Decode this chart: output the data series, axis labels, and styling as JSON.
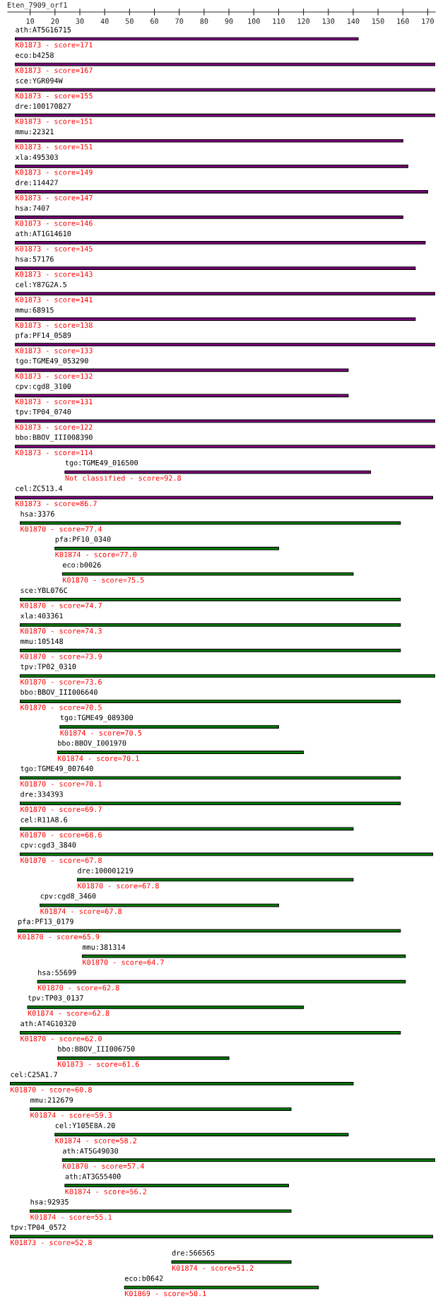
{
  "chart_data": {
    "type": "bar",
    "orientation": "horizontal",
    "title": "Eten_7909_orf1",
    "categories": [
      "ath:AT5G16715",
      "eco:b4258",
      "sce:YGR094W",
      "dre:100170827",
      "mmu:22321",
      "xla:495303",
      "dre:114427",
      "hsa:7407",
      "ath:AT1G14610",
      "hsa:57176",
      "cel:Y87G2A.5",
      "mmu:68915",
      "pfa:PF14_0589",
      "tgo:TGME49_053290",
      "cpv:cgd8_3100",
      "tpv:TP04_0740",
      "bbo:BBOV_III008390",
      "tgo:TGME49_016500",
      "cel:ZC513.4",
      "hsa:3376",
      "pfa:PF10_0340",
      "eco:b0026",
      "sce:YBL076C",
      "xla:403361",
      "mmu:105148",
      "tpv:TP02_0310",
      "bbo:BBOV_III006640",
      "tgo:TGME49_089300",
      "bbo:BBOV_I001970",
      "tgo:TGME49_007640",
      "dre:334393",
      "cel:R11A8.6",
      "cpv:cgd3_3840",
      "dre:100001219",
      "cpv:cgd8_3460",
      "pfa:PF13_0179",
      "mmu:381314",
      "hsa:55699",
      "tpv:TP03_0137",
      "ath:AT4G10320",
      "bbo:BBOV_III006750",
      "cel:C25A1.7",
      "mmu:212679",
      "cel:Y105E8A.20",
      "ath:AT5G49030",
      "ath:AT3G55400",
      "hsa:92935",
      "tpv:TP04_0572",
      "dre:566565",
      "eco:b0642"
    ],
    "base": [
      4,
      4,
      4,
      4,
      4,
      4,
      4,
      4,
      4,
      4,
      4,
      4,
      4,
      4,
      4,
      4,
      4,
      24,
      4,
      6,
      20,
      23,
      6,
      6,
      6,
      6,
      6,
      22,
      21,
      6,
      6,
      6,
      6,
      29,
      14,
      5,
      31,
      13,
      9,
      6,
      21,
      2,
      10,
      20,
      23,
      24,
      10,
      2,
      67,
      48
    ],
    "values": [
      138,
      169,
      169,
      169,
      156,
      158,
      166,
      156,
      165,
      161,
      169,
      161,
      169,
      134,
      134,
      169,
      169,
      123,
      168,
      153,
      90,
      117,
      153,
      153,
      153,
      167,
      153,
      88,
      99,
      153,
      153,
      134,
      166,
      111,
      96,
      154,
      130,
      148,
      111,
      153,
      69,
      138,
      105,
      118,
      150,
      90,
      105,
      170,
      48,
      78
    ],
    "colors": [
      "#800080",
      "#800080",
      "#800080",
      "#800080",
      "#800080",
      "#800080",
      "#800080",
      "#800080",
      "#800080",
      "#800080",
      "#800080",
      "#800080",
      "#800080",
      "#800080",
      "#800080",
      "#800080",
      "#800080",
      "#800080",
      "#800080",
      "#008000",
      "#008000",
      "#008000",
      "#008000",
      "#008000",
      "#008000",
      "#008000",
      "#008000",
      "#008000",
      "#008000",
      "#008000",
      "#008000",
      "#008000",
      "#008000",
      "#008000",
      "#008000",
      "#008000",
      "#008000",
      "#008000",
      "#008000",
      "#008000",
      "#008000",
      "#008000",
      "#008000",
      "#008000",
      "#008000",
      "#008000",
      "#008000",
      "#008000",
      "#008000",
      "#008000"
    ],
    "xlim": [
      1,
      173
    ],
    "xticks": [
      10,
      20,
      30,
      40,
      50,
      60,
      70,
      80,
      90,
      100,
      110,
      120,
      130,
      140,
      150,
      160,
      170
    ],
    "tick_labels": "x",
    "grid": false,
    "legend": false,
    "annotations": [
      "K01873 - score=171",
      "K01873 - score=167",
      "K01873 - score=155",
      "K01873 - score=151",
      "K01873 - score=151",
      "K01873 - score=149",
      "K01873 - score=147",
      "K01873 - score=146",
      "K01873 - score=145",
      "K01873 - score=143",
      "K01873 - score=141",
      "K01873 - score=138",
      "K01873 - score=133",
      "K01873 - score=132",
      "K01873 - score=131",
      "K01873 - score=122",
      "K01873 - score=114",
      "Not classified - score=92.8",
      "K01873 - score=86.7",
      "K01870 - score=77.4",
      "K01874 - score=77.0",
      "K01870 - score=75.5",
      "K01870 - score=74.7",
      "K01870 - score=74.3",
      "K01870 - score=73.9",
      "K01870 - score=73.6",
      "K01870 - score=70.5",
      "K01874 - score=70.5",
      "K01874 - score=70.1",
      "K01870 - score=70.1",
      "K01870 - score=69.7",
      "K01870 - score=68.6",
      "K01870 - score=67.8",
      "K01870 - score=67.8",
      "K01874 - score=67.8",
      "K01870 - score=65.9",
      "K01870 - score=64.7",
      "K01870 - score=62.8",
      "K01874 - score=62.8",
      "K01870 - score=62.0",
      "K01873 - score=61.6",
      "K01870 - score=60.8",
      "K01874 - score=59.3",
      "K01874 - score=58.2",
      "K01870 - score=57.4",
      "K01874 - score=56.2",
      "K01874 - score=55.1",
      "K01873 - score=52.8",
      "K01874 - score=51.2",
      "K01869 - score=50.1"
    ]
  }
}
